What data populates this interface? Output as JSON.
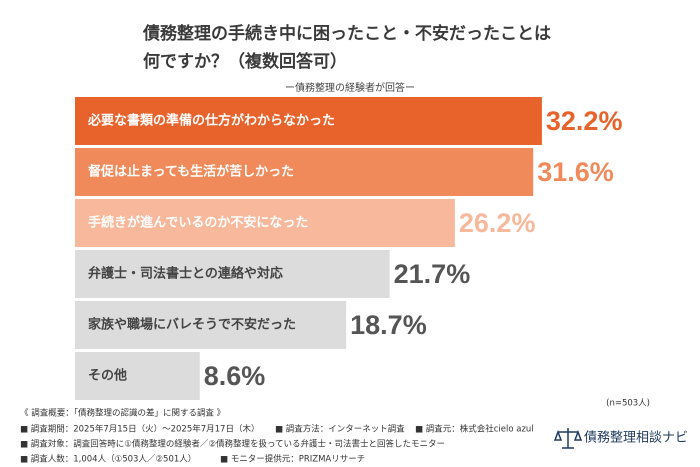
{
  "chart_data": {
    "type": "hbar",
    "title": [
      "債務整理の手続き中に困ったこと・不安だったことは",
      "何ですか？（複数回答可）"
    ],
    "subtitle": "ー債務整理の経験者が回答ー",
    "categories": [
      "必要な書類の準備の仕方がわからなかった",
      "督促は止まっても生活が苦しかった",
      "手続きが進んでいるのか不安になった",
      "弁護士・司法書士との連絡や対応",
      "家族や職場にバレそうで不安だった",
      "その他"
    ],
    "values": [
      32.2,
      31.6,
      26.2,
      21.7,
      18.7,
      8.6
    ],
    "value_labels": [
      "32.2%",
      "31.6%",
      "26.2%",
      "21.7%",
      "18.7%",
      "8.6%"
    ],
    "colors": [
      "#e8622b",
      "#f08a5b",
      "#f7b89b",
      "#dcdcdc",
      "#dcdcdc",
      "#dcdcdc"
    ],
    "label_colors": [
      "#e8622b",
      "#f08a5b",
      "#f7b89b",
      "#555555",
      "#555555",
      "#555555"
    ],
    "category_text_colors": [
      "#ffffff",
      "#ffffff",
      "#ffffff",
      "#444444",
      "#444444",
      "#444444"
    ],
    "xlim": [
      0,
      40
    ],
    "note": "(n=503人)"
  },
  "footer": {
    "heading": "《 調査概要：「債務整理の認識の差」に関する調査 》",
    "items": [
      "■ 調査期間：2025年7月15日（火）～2025年7月17日（木）",
      "■ 調査方法：インターネット調査",
      "■ 調査元：株式会社cielo azul",
      "■ 調査対象：調査回答時に①債務整理の経験者／②債務整理を扱っている弁護士・司法書士と回答したモニター",
      "■ 調査人数：1,004人（①503人／②501人）",
      "■ モニター提供元：PRIZMAリサーチ"
    ]
  },
  "logo": "債務整理相談ナビ"
}
